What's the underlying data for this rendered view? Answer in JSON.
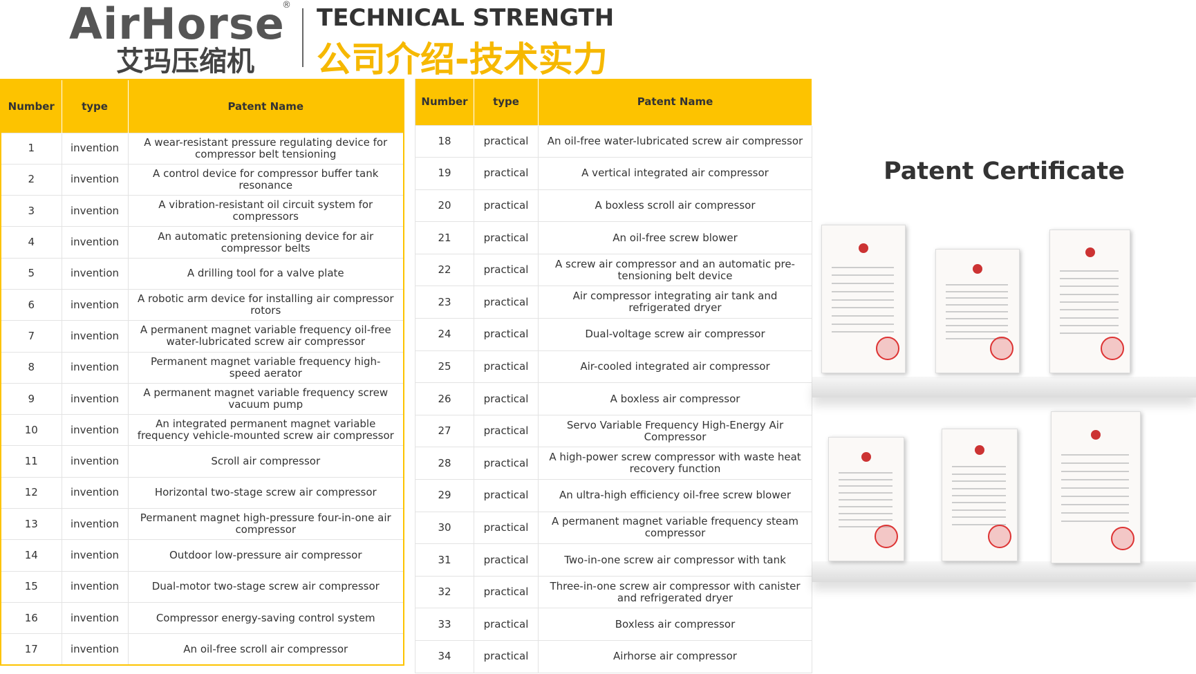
{
  "header": {
    "logo": "AirHorse",
    "logo_mark": "®",
    "logo_cn": "艾玛压缩机",
    "title": "TECHNICAL STRENGTH",
    "title_cn": "公司介绍-技术实力"
  },
  "tables": [
    {
      "columns": [
        "Number",
        "type",
        "Patent Name"
      ],
      "rows": [
        [
          "1",
          "invention",
          "A wear-resistant pressure regulating device for compressor belt tensioning"
        ],
        [
          "2",
          "invention",
          "A control device for compressor buffer tank resonance"
        ],
        [
          "3",
          "invention",
          "A vibration-resistant oil circuit system for compressors"
        ],
        [
          "4",
          "invention",
          "An automatic pretensioning device for air compressor belts"
        ],
        [
          "5",
          "invention",
          "A drilling tool for a valve plate"
        ],
        [
          "6",
          "invention",
          "A robotic arm device for installing air compressor rotors"
        ],
        [
          "7",
          "invention",
          "A permanent magnet variable frequency oil-free water-lubricated screw air compressor"
        ],
        [
          "8",
          "invention",
          "Permanent magnet variable frequency high-speed aerator"
        ],
        [
          "9",
          "invention",
          "A permanent magnet variable frequency screw vacuum pump"
        ],
        [
          "10",
          "invention",
          "An integrated permanent magnet variable frequency vehicle-mounted screw air compressor"
        ],
        [
          "11",
          "invention",
          "Scroll air compressor"
        ],
        [
          "12",
          "invention",
          "Horizontal two-stage screw air compressor"
        ],
        [
          "13",
          "invention",
          "Permanent magnet high-pressure four-in-one air compressor"
        ],
        [
          "14",
          "invention",
          "Outdoor low-pressure air compressor"
        ],
        [
          "15",
          "invention",
          "Dual-motor two-stage screw air compressor"
        ],
        [
          "16",
          "invention",
          "Compressor energy-saving control system"
        ],
        [
          "17",
          "invention",
          "An oil-free scroll air compressor"
        ]
      ]
    },
    {
      "columns": [
        "Number",
        "type",
        "Patent Name"
      ],
      "rows": [
        [
          "18",
          "practical",
          "An oil-free water-lubricated screw air compressor"
        ],
        [
          "19",
          "practical",
          "A vertical integrated air compressor"
        ],
        [
          "20",
          "practical",
          "A boxless scroll air compressor"
        ],
        [
          "21",
          "practical",
          "An oil-free screw blower"
        ],
        [
          "22",
          "practical",
          "A screw air compressor and an automatic pre-tensioning belt device"
        ],
        [
          "23",
          "practical",
          "Air compressor integrating air tank and refrigerated dryer"
        ],
        [
          "24",
          "practical",
          "Dual-voltage screw air compressor"
        ],
        [
          "25",
          "practical",
          "Air-cooled integrated air compressor"
        ],
        [
          "26",
          "practical",
          "A boxless air compressor"
        ],
        [
          "27",
          "practical",
          "Servo Variable Frequency High-Energy Air Compressor"
        ],
        [
          "28",
          "practical",
          "A high-power screw compressor with waste heat recovery function"
        ],
        [
          "29",
          "practical",
          "An ultra-high efficiency oil-free screw blower"
        ],
        [
          "30",
          "practical",
          "A permanent magnet variable frequency steam compressor"
        ],
        [
          "31",
          "practical",
          "Two-in-one screw air compressor with tank"
        ],
        [
          "32",
          "practical",
          "Three-in-one screw air compressor with canister and refrigerated dryer"
        ],
        [
          "33",
          "practical",
          "Boxless air compressor"
        ],
        [
          "34",
          "practical",
          "Airhorse air compressor"
        ]
      ]
    }
  ],
  "certificates": {
    "title": "Patent Certificate"
  }
}
